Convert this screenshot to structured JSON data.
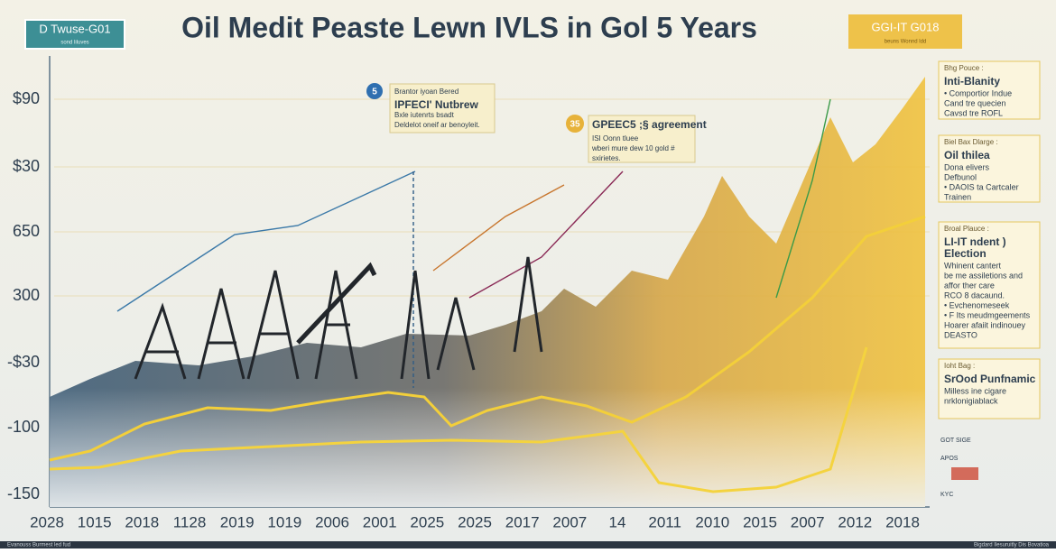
{
  "header": {
    "title": "Oil Medit Peaste Lewn IVLS in Gol 5 Years",
    "left_badge": {
      "title": "D Twuse-G01",
      "subtitle": "sond liluves"
    },
    "right_badge": {
      "title": "GGI-IT G018",
      "subtitle": "beuns Wonnd ldd"
    }
  },
  "y_labels": [
    "$90",
    "$30",
    "650",
    "300",
    "-$30",
    "-100",
    "-150"
  ],
  "x_labels": [
    "2028",
    "1015",
    "2018",
    "1128",
    "2019",
    "1019",
    "2006",
    "2001",
    "2025",
    "2025",
    "2017",
    "2007",
    "14",
    "2011",
    "2010",
    "2015",
    "2007",
    "2012",
    "2018"
  ],
  "callouts": [
    {
      "number": "5",
      "lines": [
        "Brantor iyoan Bered",
        "IPFECI' Nutbrew",
        "Bxle iutenrts bsadt",
        "Deldelot oneif ar benoyleit."
      ]
    },
    {
      "number": "35",
      "lines": [
        "GPEEC5 ;§ agreement",
        "ISI Oonn tluee",
        "wberi mure dew 10 gold #",
        "sxirietes."
      ]
    }
  ],
  "panels": [
    {
      "label": "Bhg Pouce :",
      "title": [
        "Inti-Blanity"
      ],
      "lines": [
        "• Comportior Indue",
        "Cand tre quecien",
        "Cavsd tre ROFL"
      ]
    },
    {
      "label": "Biel Bax Dlarge :",
      "title": [
        "Oil thilea"
      ],
      "lines": [
        "Dona elivers",
        "Defbunol",
        "• DAOIS ta Cartcaler",
        "Trainen"
      ]
    },
    {
      "label": "Broal Plauce :",
      "title": [
        "LI-IT ndent )",
        "Election"
      ],
      "lines": [
        "Whinent cantert",
        "be me assiletions and",
        "affor ther care",
        "RCO 8 dacaund.",
        "• Evchenomeseek",
        "• F Its meudmgeements",
        "Hoarer afaiit indinouey",
        "DEASTO"
      ]
    },
    {
      "label": "Ioht Bag :",
      "title": [
        "SrOod Punfnamic"
      ],
      "lines": [
        "Milless ine cigare",
        "nrklonigiablack"
      ]
    }
  ],
  "side_notes": [
    "GOT SIGE",
    "APOS",
    "KYC"
  ],
  "footer": {
    "left": "Evanouss Burmest led fud",
    "right": "Bigdard Ilesuruitly Dis Bovatioa"
  }
}
